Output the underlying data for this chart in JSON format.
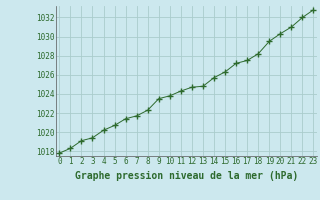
{
  "x": [
    0,
    1,
    2,
    3,
    4,
    5,
    6,
    7,
    8,
    9,
    10,
    11,
    12,
    13,
    14,
    15,
    16,
    17,
    18,
    19,
    20,
    21,
    22,
    23
  ],
  "y": [
    1017.8,
    1018.3,
    1019.1,
    1019.4,
    1020.2,
    1020.7,
    1021.4,
    1021.7,
    1022.3,
    1023.5,
    1023.8,
    1024.3,
    1024.7,
    1024.8,
    1025.7,
    1026.3,
    1027.2,
    1027.5,
    1028.2,
    1029.5,
    1030.3,
    1031.0,
    1032.0,
    1032.8
  ],
  "ylim": [
    1017.5,
    1033.2
  ],
  "yticks": [
    1018,
    1020,
    1022,
    1024,
    1026,
    1028,
    1030,
    1032
  ],
  "xticks": [
    0,
    1,
    2,
    3,
    4,
    5,
    6,
    7,
    8,
    9,
    10,
    11,
    12,
    13,
    14,
    15,
    16,
    17,
    18,
    19,
    20,
    21,
    22,
    23
  ],
  "xlabel": "Graphe pression niveau de la mer (hPa)",
  "line_color": "#2d6a2d",
  "marker": "P",
  "marker_size": 2.5,
  "background_color": "#cce8ee",
  "grid_color": "#aacccc",
  "xlabel_fontsize": 7,
  "tick_fontsize": 5.5
}
